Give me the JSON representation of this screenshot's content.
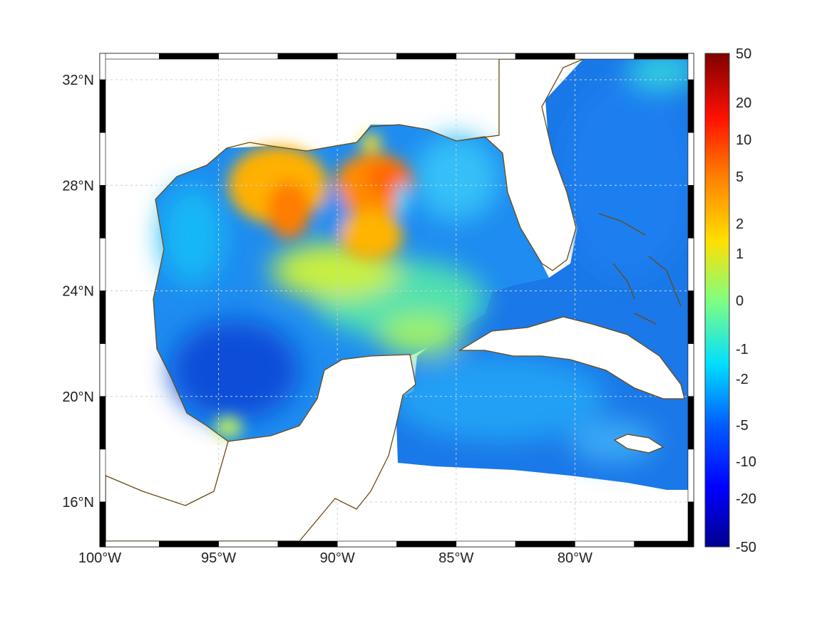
{
  "map": {
    "lon_ticks": [
      {
        "value": -100,
        "label": "100°W"
      },
      {
        "value": -95,
        "label": "95°W"
      },
      {
        "value": -90,
        "label": "90°W"
      },
      {
        "value": -85,
        "label": "85°W"
      },
      {
        "value": -80,
        "label": "80°W"
      }
    ],
    "lat_ticks": [
      {
        "value": 32,
        "label": "32°N"
      },
      {
        "value": 28,
        "label": "28°N"
      },
      {
        "value": 24,
        "label": "24°N"
      },
      {
        "value": 20,
        "label": "20°N"
      },
      {
        "value": 16,
        "label": "16°N"
      }
    ],
    "lon_range": [
      -100,
      -75
    ],
    "lat_range": [
      14.3,
      33
    ],
    "grid": true,
    "land_color": "#ffffff",
    "coast_color": "#6b4a12"
  },
  "colorbar": {
    "labels": [
      "50",
      "20",
      "10",
      "5",
      "2",
      "1",
      "0",
      "-1",
      "-2",
      "-5",
      "-10",
      "-20",
      "-50"
    ],
    "colormap": "jet",
    "placement": "right"
  }
}
